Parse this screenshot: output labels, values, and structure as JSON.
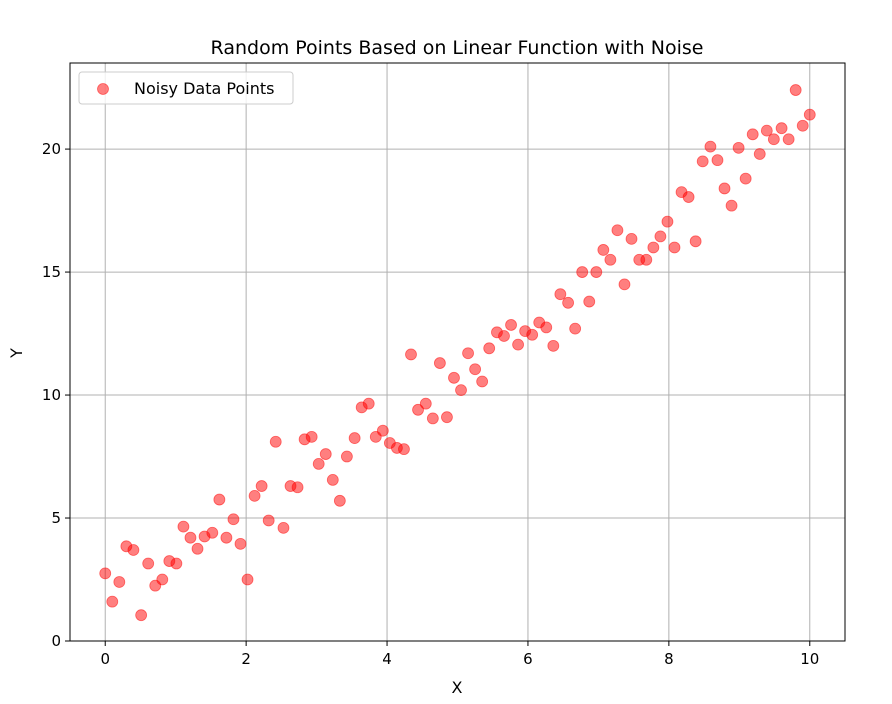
{
  "chart_data": {
    "type": "scatter",
    "title": "Random Points Based on Linear Function with Noise",
    "xlabel": "X",
    "ylabel": "Y",
    "xlim": [
      -0.5,
      10.5
    ],
    "ylim": [
      0,
      23.5
    ],
    "xticks": [
      0,
      2,
      4,
      6,
      8,
      10
    ],
    "yticks": [
      0,
      5,
      10,
      15,
      20
    ],
    "xtick_labels": [
      "0",
      "2",
      "4",
      "6",
      "8",
      "10"
    ],
    "ytick_labels": [
      "0",
      "5",
      "10",
      "15",
      "20"
    ],
    "grid": true,
    "legend_position": "upper-left",
    "series": [
      {
        "name": "Noisy Data Points",
        "color": "#ff0000",
        "alpha": 0.5,
        "marker": "circle",
        "x": [
          0.0,
          0.1,
          0.2,
          0.3,
          0.4,
          0.51,
          0.61,
          0.71,
          0.81,
          0.91,
          1.01,
          1.11,
          1.21,
          1.31,
          1.41,
          1.52,
          1.62,
          1.72,
          1.82,
          1.92,
          2.02,
          2.12,
          2.22,
          2.32,
          2.42,
          2.53,
          2.63,
          2.73,
          2.83,
          2.93,
          3.03,
          3.13,
          3.23,
          3.33,
          3.43,
          3.54,
          3.64,
          3.74,
          3.84,
          3.94,
          4.04,
          4.14,
          4.24,
          4.34,
          4.44,
          4.55,
          4.65,
          4.75,
          4.85,
          4.95,
          5.05,
          5.15,
          5.25,
          5.35,
          5.45,
          5.56,
          5.66,
          5.76,
          5.86,
          5.96,
          6.06,
          6.16,
          6.26,
          6.36,
          6.46,
          6.57,
          6.67,
          6.77,
          6.87,
          6.97,
          7.07,
          7.17,
          7.27,
          7.37,
          7.47,
          7.58,
          7.68,
          7.78,
          7.88,
          7.98,
          8.08,
          8.18,
          8.28,
          8.38,
          8.48,
          8.59,
          8.69,
          8.79,
          8.89,
          8.99,
          9.09,
          9.19,
          9.29,
          9.39,
          9.49,
          9.6,
          9.7,
          9.8,
          9.9,
          10.0
        ],
        "y": [
          2.75,
          1.6,
          2.4,
          3.85,
          3.7,
          1.05,
          3.15,
          2.25,
          2.5,
          3.25,
          3.15,
          4.65,
          4.2,
          3.75,
          4.25,
          4.4,
          5.75,
          4.2,
          4.95,
          3.95,
          2.5,
          5.9,
          6.3,
          4.9,
          8.1,
          4.6,
          6.3,
          6.25,
          8.2,
          8.3,
          7.2,
          7.6,
          6.55,
          5.7,
          7.5,
          8.25,
          9.5,
          9.65,
          8.3,
          8.55,
          8.05,
          7.85,
          7.8,
          11.65,
          9.4,
          9.65,
          9.05,
          11.3,
          9.1,
          10.7,
          10.2,
          11.7,
          11.05,
          10.55,
          11.9,
          12.55,
          12.4,
          12.85,
          12.05,
          12.6,
          12.45,
          12.95,
          12.75,
          12.0,
          14.1,
          13.75,
          12.7,
          15.0,
          13.8,
          15.0,
          15.9,
          15.5,
          16.7,
          14.5,
          16.35,
          15.5,
          15.5,
          16.0,
          16.45,
          17.05,
          16.0,
          18.25,
          18.05,
          16.25,
          19.5,
          20.1,
          19.55,
          18.4,
          17.7,
          20.05,
          18.8,
          20.6,
          19.8,
          20.75,
          20.4,
          20.85,
          20.4,
          22.4,
          20.95,
          21.4
        ]
      }
    ]
  }
}
